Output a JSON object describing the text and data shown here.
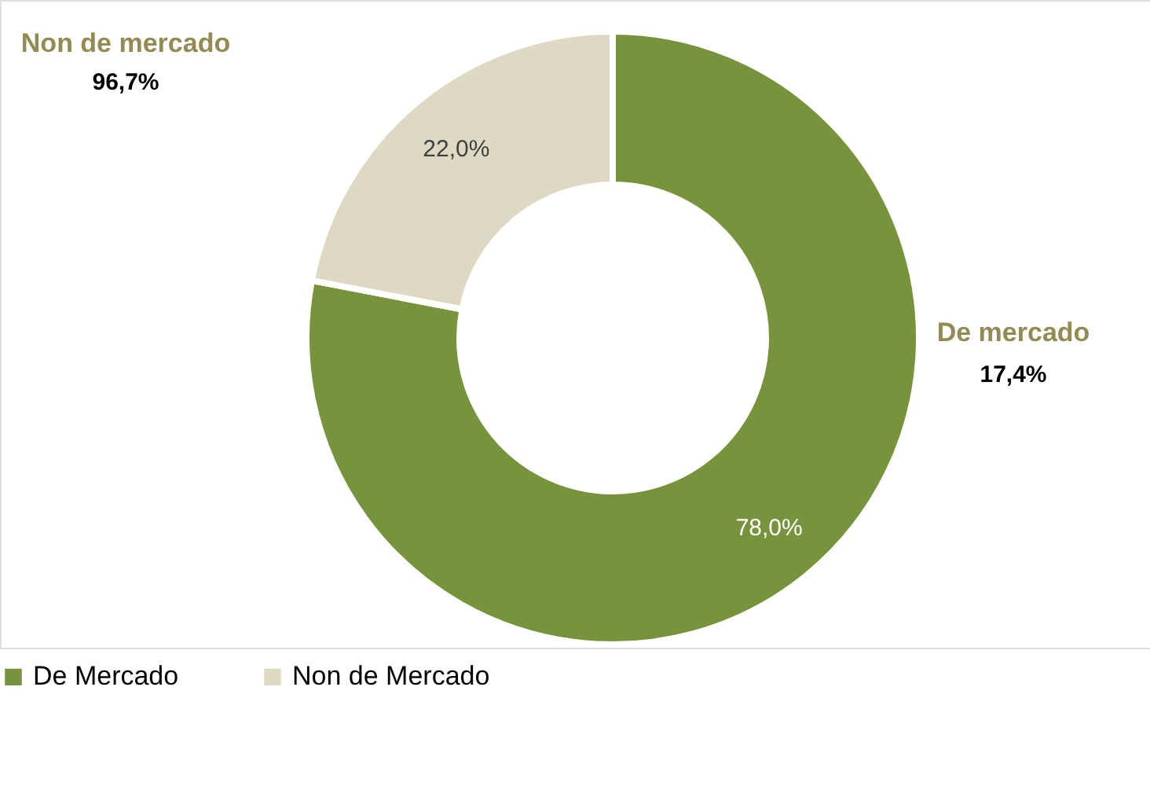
{
  "chart_data": {
    "type": "donut",
    "categories": [
      "De Mercado",
      "Non de Mercado"
    ],
    "values": [
      78.0,
      22.0
    ],
    "colors": [
      "#77933c",
      "#ddd9c3"
    ],
    "value_labels": [
      "78,0%",
      "22,0%"
    ],
    "annotations": [
      "Non de mercado",
      "96,7%",
      "De mercado",
      "17,4%"
    ],
    "legend": "bottom"
  }
}
